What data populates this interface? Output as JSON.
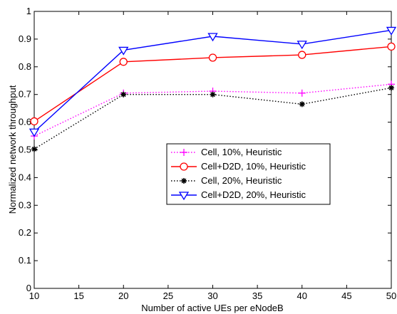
{
  "chart_data": {
    "type": "line",
    "title": "",
    "xlabel": "Number of active UEs per eNodeB",
    "ylabel": "Normalized network throughput",
    "xlim": [
      10,
      50
    ],
    "ylim": [
      0,
      1
    ],
    "xticks": [
      "10",
      "15",
      "20",
      "25",
      "30",
      "35",
      "40",
      "45",
      "50"
    ],
    "yticks": [
      "0",
      "0.1",
      "0.2",
      "0.3",
      "0.4",
      "0.5",
      "0.6",
      "0.7",
      "0.8",
      "0.9",
      "1"
    ],
    "grid": false,
    "legend_position": "center-right",
    "x": [
      10,
      20,
      30,
      40,
      50
    ],
    "series": [
      {
        "name": "Cell, 10%, Heuristic",
        "values": [
          0.55,
          0.705,
          0.712,
          0.705,
          0.737
        ],
        "color": "#ff00ff",
        "line_style": "dotted",
        "marker": "plus"
      },
      {
        "name": "Cell+D2D, 10%, Heuristic",
        "values": [
          0.603,
          0.818,
          0.833,
          0.843,
          0.873
        ],
        "color": "#ff0000",
        "line_style": "solid",
        "marker": "circle"
      },
      {
        "name": "Cell, 20%, Heuristic",
        "values": [
          0.503,
          0.7,
          0.7,
          0.665,
          0.724
        ],
        "color": "#000000",
        "line_style": "dotted",
        "marker": "asterisk"
      },
      {
        "name": "Cell+D2D, 20%, Heuristic",
        "values": [
          0.565,
          0.86,
          0.91,
          0.882,
          0.932
        ],
        "color": "#0000ff",
        "line_style": "solid",
        "marker": "triangle-down"
      }
    ]
  }
}
